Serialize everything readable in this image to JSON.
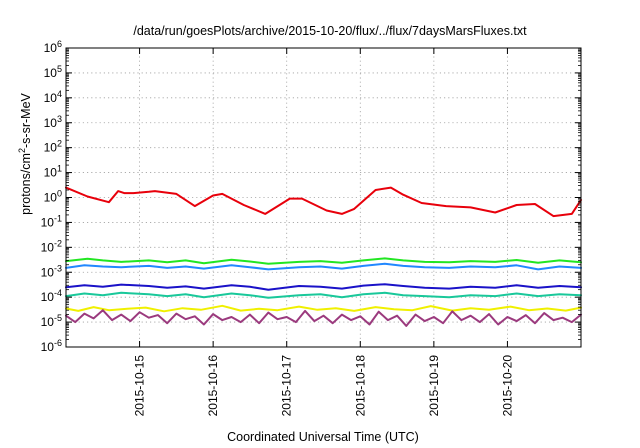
{
  "chart_data": {
    "type": "line",
    "title": "/data/run/goesPlots/archive/2015-10-20/flux/../flux/7daysMarsFluxes.txt",
    "xlabel": "Coordinated Universal Time (UTC)",
    "ylabel": {
      "base": "protons/cm",
      "sup": "2",
      "rest": "-s-sr-MeV"
    },
    "y_scale": "log",
    "ylim": [
      1e-06,
      1000000.0
    ],
    "xlim": [
      "2015-10-14 00:00",
      "2015-10-21 00:00"
    ],
    "grid": true,
    "x_ticks": [
      "2015-10-15",
      "2015-10-16",
      "2015-10-17",
      "2015-10-18",
      "2015-10-19",
      "2015-10-20"
    ],
    "y_ticks": [
      {
        "value": 1e-06,
        "base": "10",
        "exp": "-6"
      },
      {
        "value": 1e-05,
        "base": "10",
        "exp": "-5"
      },
      {
        "value": 0.0001,
        "base": "10",
        "exp": "-4"
      },
      {
        "value": 0.001,
        "base": "10",
        "exp": "-3"
      },
      {
        "value": 0.01,
        "base": "10",
        "exp": "-2"
      },
      {
        "value": 0.1,
        "base": "10",
        "exp": "-1"
      },
      {
        "value": 1,
        "base": "10",
        "exp": "0"
      },
      {
        "value": 10,
        "base": "10",
        "exp": "1"
      },
      {
        "value": 100,
        "base": "10",
        "exp": "2"
      },
      {
        "value": 1000,
        "base": "10",
        "exp": "3"
      },
      {
        "value": 10000,
        "base": "10",
        "exp": "4"
      },
      {
        "value": 100000,
        "base": "10",
        "exp": "5"
      },
      {
        "value": 1000000,
        "base": "10",
        "exp": "6"
      }
    ],
    "series": [
      {
        "color": "#e8000b",
        "x": [
          "2015-10-14 00:00",
          "2015-10-14 07:00",
          "2015-10-14 14:00",
          "2015-10-14 17:00",
          "2015-10-14 19:00",
          "2015-10-14 22:00",
          "2015-10-15 03:00",
          "2015-10-15 05:00",
          "2015-10-15 12:00",
          "2015-10-15 18:00",
          "2015-10-16 00:00",
          "2015-10-16 03:00",
          "2015-10-16 10:00",
          "2015-10-16 17:00",
          "2015-10-17 01:00",
          "2015-10-17 05:00",
          "2015-10-17 13:00",
          "2015-10-17 18:00",
          "2015-10-17 22:00",
          "2015-10-18 05:00",
          "2015-10-18 10:00",
          "2015-10-18 14:00",
          "2015-10-18 20:00",
          "2015-10-19 04:00",
          "2015-10-19 12:00",
          "2015-10-19 20:00",
          "2015-10-20 03:00",
          "2015-10-20 09:00",
          "2015-10-20 15:00",
          "2015-10-20 21:00",
          "2015-10-21 00:00"
        ],
        "values": [
          2.5,
          1.1,
          0.65,
          1.8,
          1.5,
          1.5,
          1.7,
          1.8,
          1.4,
          0.45,
          1.2,
          1.4,
          0.5,
          0.22,
          0.9,
          0.9,
          0.3,
          0.22,
          0.35,
          2.0,
          2.5,
          1.3,
          0.6,
          0.45,
          0.4,
          0.25,
          0.5,
          0.55,
          0.18,
          0.22,
          0.8
        ]
      },
      {
        "color": "#22e622",
        "x": [
          "2015-10-14 00:00",
          "2015-10-14 07:00",
          "2015-10-14 12:00",
          "2015-10-14 18:00",
          "2015-10-15 03:00",
          "2015-10-15 09:00",
          "2015-10-15 15:00",
          "2015-10-15 21:00",
          "2015-10-16 06:00",
          "2015-10-16 12:00",
          "2015-10-16 18:00",
          "2015-10-17 04:00",
          "2015-10-17 11:00",
          "2015-10-17 18:00",
          "2015-10-18 01:00",
          "2015-10-18 08:00",
          "2015-10-18 14:00",
          "2015-10-18 21:00",
          "2015-10-19 05:00",
          "2015-10-19 12:00",
          "2015-10-19 20:00",
          "2015-10-20 03:00",
          "2015-10-20 10:00",
          "2015-10-20 17:00",
          "2015-10-21 00:00"
        ],
        "values": [
          0.0028,
          0.0035,
          0.003,
          0.0026,
          0.003,
          0.0025,
          0.003,
          0.0023,
          0.0032,
          0.0027,
          0.0022,
          0.0026,
          0.0028,
          0.0024,
          0.003,
          0.0036,
          0.003,
          0.0026,
          0.0025,
          0.0028,
          0.0026,
          0.0031,
          0.0024,
          0.003,
          0.0025
        ]
      },
      {
        "color": "#2288ff",
        "x": [
          "2015-10-14 00:00",
          "2015-10-14 06:00",
          "2015-10-14 12:00",
          "2015-10-14 18:00",
          "2015-10-15 03:00",
          "2015-10-15 09:00",
          "2015-10-15 15:00",
          "2015-10-15 21:00",
          "2015-10-16 06:00",
          "2015-10-16 12:00",
          "2015-10-16 18:00",
          "2015-10-17 04:00",
          "2015-10-17 11:00",
          "2015-10-17 18:00",
          "2015-10-18 01:00",
          "2015-10-18 08:00",
          "2015-10-18 14:00",
          "2015-10-18 21:00",
          "2015-10-19 05:00",
          "2015-10-19 12:00",
          "2015-10-19 20:00",
          "2015-10-20 03:00",
          "2015-10-20 10:00",
          "2015-10-20 17:00",
          "2015-10-21 00:00"
        ],
        "values": [
          0.0015,
          0.0019,
          0.0017,
          0.0016,
          0.0018,
          0.0015,
          0.0017,
          0.0014,
          0.0019,
          0.0016,
          0.0013,
          0.0016,
          0.0017,
          0.0014,
          0.0018,
          0.0022,
          0.0018,
          0.0016,
          0.0015,
          0.0017,
          0.0016,
          0.0019,
          0.0013,
          0.0017,
          0.0015
        ]
      },
      {
        "color": "#1a12c8",
        "x": [
          "2015-10-14 00:00",
          "2015-10-14 06:00",
          "2015-10-14 12:00",
          "2015-10-14 18:00",
          "2015-10-15 03:00",
          "2015-10-15 09:00",
          "2015-10-15 15:00",
          "2015-10-15 21:00",
          "2015-10-16 06:00",
          "2015-10-16 12:00",
          "2015-10-16 18:00",
          "2015-10-17 04:00",
          "2015-10-17 11:00",
          "2015-10-17 18:00",
          "2015-10-18 01:00",
          "2015-10-18 08:00",
          "2015-10-18 14:00",
          "2015-10-18 21:00",
          "2015-10-19 05:00",
          "2015-10-19 12:00",
          "2015-10-19 20:00",
          "2015-10-20 03:00",
          "2015-10-20 10:00",
          "2015-10-20 17:00",
          "2015-10-21 00:00"
        ],
        "values": [
          0.00025,
          0.0003,
          0.00026,
          0.00032,
          0.00028,
          0.00024,
          0.00027,
          0.00022,
          0.0003,
          0.00026,
          0.0002,
          0.00028,
          0.00026,
          0.00022,
          0.00029,
          0.00033,
          0.00028,
          0.00024,
          0.00022,
          0.00026,
          0.00024,
          0.0003,
          0.00024,
          0.00028,
          0.00025
        ]
      },
      {
        "color": "#19c89a",
        "x": [
          "2015-10-14 00:00",
          "2015-10-14 06:00",
          "2015-10-14 12:00",
          "2015-10-14 18:00",
          "2015-10-15 03:00",
          "2015-10-15 09:00",
          "2015-10-15 15:00",
          "2015-10-15 21:00",
          "2015-10-16 06:00",
          "2015-10-16 12:00",
          "2015-10-16 18:00",
          "2015-10-17 04:00",
          "2015-10-17 11:00",
          "2015-10-17 18:00",
          "2015-10-18 01:00",
          "2015-10-18 08:00",
          "2015-10-18 14:00",
          "2015-10-18 21:00",
          "2015-10-19 05:00",
          "2015-10-19 12:00",
          "2015-10-19 20:00",
          "2015-10-20 03:00",
          "2015-10-20 10:00",
          "2015-10-20 17:00",
          "2015-10-21 00:00"
        ],
        "values": [
          0.00011,
          0.00014,
          0.00012,
          0.00015,
          0.00013,
          0.00011,
          0.00013,
          0.0001,
          0.00014,
          0.00012,
          9.5e-05,
          0.00012,
          0.00013,
          0.0001,
          0.00013,
          0.00015,
          0.00012,
          0.00011,
          0.0001,
          0.00012,
          0.00011,
          0.00014,
          0.00011,
          0.00013,
          0.00012
        ]
      },
      {
        "color": "#f0f000",
        "x": [
          "2015-10-14 00:00",
          "2015-10-14 04:00",
          "2015-10-14 09:00",
          "2015-10-14 14:00",
          "2015-10-14 20:00",
          "2015-10-15 02:00",
          "2015-10-15 08:00",
          "2015-10-15 14:00",
          "2015-10-15 20:00",
          "2015-10-16 03:00",
          "2015-10-16 09:00",
          "2015-10-16 15:00",
          "2015-10-16 21:00",
          "2015-10-17 04:00",
          "2015-10-17 10:00",
          "2015-10-17 16:00",
          "2015-10-17 22:00",
          "2015-10-18 05:00",
          "2015-10-18 11:00",
          "2015-10-18 17:00",
          "2015-10-18 23:00",
          "2015-10-19 06:00",
          "2015-10-19 12:00",
          "2015-10-19 18:00",
          "2015-10-20 01:00",
          "2015-10-20 07:00",
          "2015-10-20 13:00",
          "2015-10-20 19:00",
          "2015-10-21 00:00"
        ],
        "values": [
          3.5e-05,
          2.8e-05,
          4e-05,
          3e-05,
          3.4e-05,
          3.8e-05,
          2.7e-05,
          3.6e-05,
          3.1e-05,
          4.5e-05,
          2.9e-05,
          3.4e-05,
          3e-05,
          4.2e-05,
          3.1e-05,
          3.6e-05,
          2.8e-05,
          4e-05,
          3.3e-05,
          3e-05,
          4.4e-05,
          2.9e-05,
          3.6e-05,
          3.1e-05,
          4.2e-05,
          3e-05,
          3.5e-05,
          2.9e-05,
          3.8e-05
        ]
      },
      {
        "color": "#9b3a7e",
        "x": [
          "2015-10-14 00:00",
          "2015-10-14 03:00",
          "2015-10-14 06:00",
          "2015-10-14 09:00",
          "2015-10-14 12:00",
          "2015-10-14 15:00",
          "2015-10-14 18:00",
          "2015-10-14 21:00",
          "2015-10-15 00:00",
          "2015-10-15 03:00",
          "2015-10-15 06:00",
          "2015-10-15 09:00",
          "2015-10-15 12:00",
          "2015-10-15 15:00",
          "2015-10-15 18:00",
          "2015-10-15 21:00",
          "2015-10-16 00:00",
          "2015-10-16 03:00",
          "2015-10-16 06:00",
          "2015-10-16 09:00",
          "2015-10-16 12:00",
          "2015-10-16 15:00",
          "2015-10-16 18:00",
          "2015-10-16 21:00",
          "2015-10-17 00:00",
          "2015-10-17 03:00",
          "2015-10-17 06:00",
          "2015-10-17 09:00",
          "2015-10-17 12:00",
          "2015-10-17 15:00",
          "2015-10-17 18:00",
          "2015-10-17 21:00",
          "2015-10-18 00:00",
          "2015-10-18 03:00",
          "2015-10-18 06:00",
          "2015-10-18 09:00",
          "2015-10-18 12:00",
          "2015-10-18 15:00",
          "2015-10-18 18:00",
          "2015-10-18 21:00",
          "2015-10-19 00:00",
          "2015-10-19 03:00",
          "2015-10-19 06:00",
          "2015-10-19 09:00",
          "2015-10-19 12:00",
          "2015-10-19 15:00",
          "2015-10-19 18:00",
          "2015-10-19 21:00",
          "2015-10-20 00:00",
          "2015-10-20 03:00",
          "2015-10-20 06:00",
          "2015-10-20 09:00",
          "2015-10-20 12:00",
          "2015-10-20 15:00",
          "2015-10-20 18:00",
          "2015-10-20 21:00",
          "2015-10-21 00:00"
        ],
        "values": [
          1.8e-05,
          1e-05,
          2.2e-05,
          1.4e-05,
          3e-05,
          1.2e-05,
          2e-05,
          1.1e-05,
          2.5e-05,
          1.5e-05,
          1.9e-05,
          9e-06,
          2.2e-05,
          1.3e-05,
          1.7e-05,
          8e-06,
          2.1e-05,
          1.2e-05,
          1.6e-05,
          1e-05,
          2e-05,
          9e-06,
          2.4e-05,
          1.3e-05,
          1.6e-05,
          1e-05,
          2.8e-05,
          1.1e-05,
          1.8e-05,
          9e-06,
          2e-05,
          1.2e-05,
          1.7e-05,
          8e-06,
          2.6e-05,
          1.2e-05,
          1.8e-05,
          7e-06,
          2e-05,
          1.1e-05,
          1.6e-05,
          9e-06,
          2.7e-05,
          1.2e-05,
          1.8e-05,
          1e-05,
          2.1e-05,
          8e-06,
          1.6e-05,
          1.1e-05,
          1.9e-05,
          9e-06,
          2.3e-05,
          1.2e-05,
          1.5e-05,
          1e-05,
          2e-05
        ]
      }
    ]
  }
}
